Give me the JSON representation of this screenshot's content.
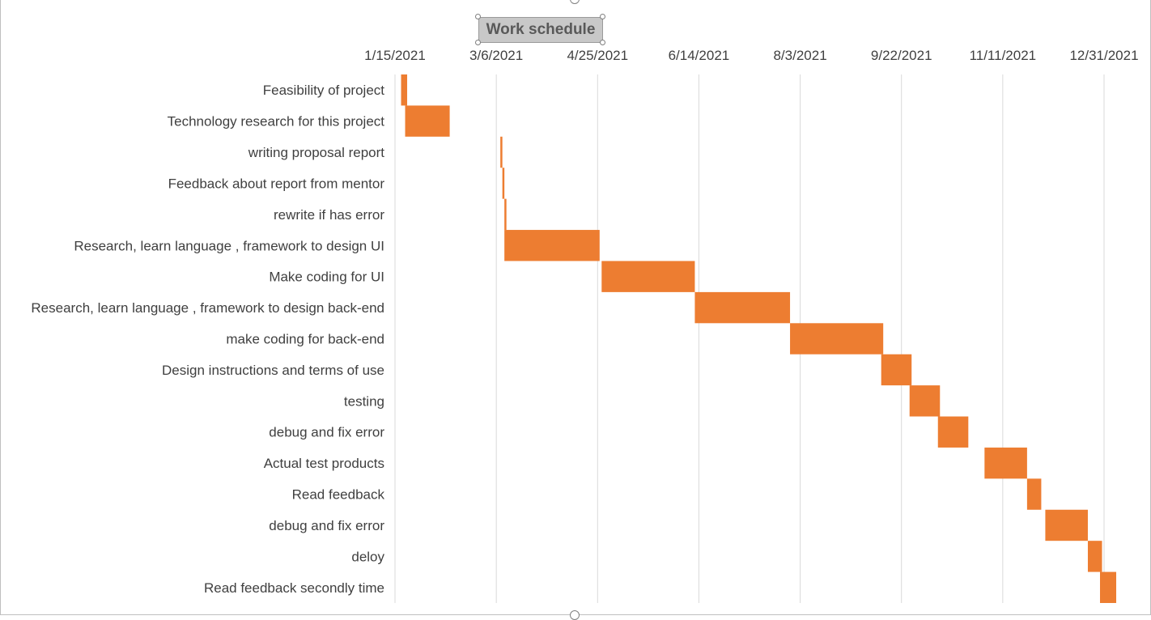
{
  "colors": {
    "bar": "#ed7d31",
    "text": "#404040",
    "gridline": "#d9d9d9"
  },
  "chart_data": {
    "type": "bar",
    "orientation": "horizontal-gantt",
    "title": "Work schedule",
    "x_axis_position": "top",
    "xlim": [
      "2021-01-15",
      "2021-12-31"
    ],
    "x_tick_labels": [
      "1/15/2021",
      "3/6/2021",
      "4/25/2021",
      "6/14/2021",
      "8/3/2021",
      "9/22/2021",
      "11/11/2021",
      "12/31/2021"
    ],
    "x_ticks": [
      "2021-01-15",
      "2021-03-06",
      "2021-04-25",
      "2021-06-14",
      "2021-08-03",
      "2021-09-22",
      "2021-11-11",
      "2021-12-31"
    ],
    "grid": true,
    "legend": "none",
    "categories": [
      "Feasibility of project",
      "Technology research for this project",
      "writing proposal report",
      "Feedback about report from mentor",
      "rewrite if has error",
      "Research, learn language , framework to design UI",
      "Make coding for  UI",
      "Research, learn language , framework to design back-end",
      "make coding for back-end",
      "Design instructions and terms of use",
      "testing",
      "debug and fix error",
      "Actual test products",
      "Read feedback ",
      "debug and fix error ",
      "deloy",
      "Read feedback secondly time"
    ],
    "series": [
      {
        "start": [
          "2021-01-18",
          "2021-01-20",
          "2021-03-08",
          "2021-03-09",
          "2021-03-10",
          "2021-03-10",
          "2021-04-27",
          "2021-06-12",
          "2021-07-29",
          "2021-09-12",
          "2021-09-26",
          "2021-10-10",
          "2021-11-02",
          "2021-11-23",
          "2021-12-02",
          "2021-12-23",
          "2021-12-29"
        ],
        "end": [
          "2021-01-21",
          "2021-02-11",
          "2021-03-09",
          "2021-03-10",
          "2021-03-11",
          "2021-04-26",
          "2021-06-12",
          "2021-07-29",
          "2021-09-13",
          "2021-09-27",
          "2021-10-11",
          "2021-10-25",
          "2021-11-23",
          "2021-11-30",
          "2021-12-23",
          "2021-12-30",
          "2022-01-06"
        ]
      }
    ]
  }
}
